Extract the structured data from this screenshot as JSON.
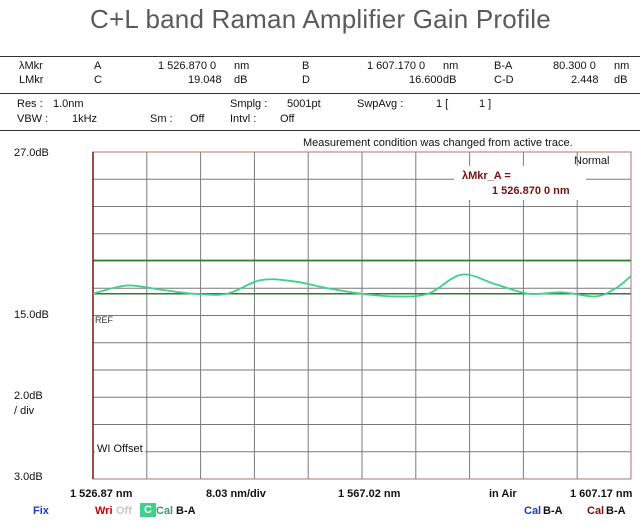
{
  "title": "C+L band Raman Amplifier Gain Profile",
  "markers": {
    "row1": {
      "label": "λMkr",
      "a_key": "A",
      "a_val": "1 526.870 0",
      "a_unit": "nm",
      "b_key": "B",
      "b_val": "1 607.170 0",
      "b_unit": "nm",
      "diff_key": "B-A",
      "diff_val": "80.300 0",
      "diff_unit": "nm"
    },
    "row2": {
      "label": "LMkr",
      "a_key": "C",
      "a_val": "19.048",
      "a_unit": "dB",
      "b_key": "D",
      "b_val": "16.600",
      "b_unit": "dB",
      "diff_key": "C-D",
      "diff_val": "2.448",
      "diff_unit": "dB"
    }
  },
  "settings": {
    "res_label": "Res :",
    "res_val": "1.0nm",
    "smplg_label": "Smplg :",
    "smplg_val": "5001pt",
    "swpavg_label": "SwpAvg :",
    "swpavg_val": "1 [",
    "swpavg_val2": "1 ]",
    "vbw_label": "VBW :",
    "vbw_val": "1kHz",
    "sm_label": "Sm :",
    "sm_val": "Off",
    "intvl_label": "Intvl :",
    "intvl_val": "Off"
  },
  "message": "Measurement condition was changed from active trace.",
  "mode": "Normal",
  "marker_box": {
    "label": "λMkr_A =",
    "value": "1 526.870 0 nm"
  },
  "ref_label": "REF",
  "wl_offset": "WI Offset",
  "y_axis": {
    "top": "27.0dB",
    "mid": "15.0dB",
    "scale": "2.0dB",
    "scale_unit": "/ div",
    "bottom": "3.0dB"
  },
  "x_axis": {
    "start": "1 526.87 nm",
    "per_div": "8.03 nm/div",
    "center": "1 567.02 nm",
    "medium": "in Air",
    "stop": "1 607.17 nm"
  },
  "status": {
    "fix": "Fix",
    "wri": "Wri",
    "off": "Off",
    "c_box": "C",
    "cal1": "Cal",
    "ba1": "B-A",
    "cal2": "Cal",
    "ba2": "B-A",
    "cal3": "Cal",
    "ba3": "B-A"
  },
  "colors": {
    "trace": "#3fd08a",
    "level_line": "#2e7d32",
    "grid": "#7a7a7a",
    "frame": "#b07070",
    "marker_text": "#7a1010",
    "fix": "#1a3cc8",
    "wri": "#c00000",
    "cal": "#3a9a6a"
  },
  "chart_data": {
    "type": "line",
    "xlim": [
      1526.87,
      1607.17
    ],
    "ylim": [
      3.0,
      27.0
    ],
    "x": [
      1526.87,
      1531.9,
      1536.9,
      1541.9,
      1546.9,
      1551.9,
      1556.9,
      1561.9,
      1566.9,
      1571.9,
      1576.9,
      1581.9,
      1586.9,
      1591.9,
      1596.9,
      1601.9,
      1604.9,
      1607.17
    ],
    "series": [
      {
        "values": [
          16.6,
          17.2,
          16.9,
          16.6,
          16.6,
          17.6,
          17.5,
          17.0,
          16.6,
          16.4,
          16.6,
          18.0,
          17.3,
          16.6,
          16.7,
          16.4,
          17.0,
          17.9
        ]
      }
    ],
    "horizontal_lines": [
      {
        "y": 19.05
      },
      {
        "y": 16.6
      }
    ],
    "marker_x": 1526.87
  }
}
